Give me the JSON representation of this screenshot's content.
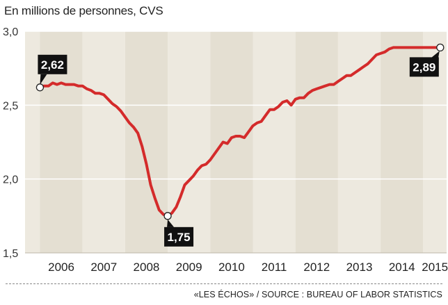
{
  "header": {
    "unit_label": "En millions de personnes, CVS"
  },
  "footer": {
    "source": "«LES ÉCHOS» / SOURCE : BUREAU OF LABOR STATISTICS"
  },
  "colors": {
    "line": "#d42b2b",
    "band_dark": "#e4dfd2",
    "band_light": "#ede9df",
    "callout_bg": "#111111",
    "callout_text": "#ffffff"
  },
  "chart_data": {
    "type": "line",
    "title": "",
    "xlabel": "",
    "ylabel": "",
    "ylim": [
      1.5,
      3.0
    ],
    "grid": true,
    "y_ticks": [
      "1,5",
      "2,0",
      "2,5",
      "3,0"
    ],
    "x_tick_labels": [
      "2006",
      "2007",
      "2008",
      "2009",
      "2010",
      "2011",
      "2012",
      "2013",
      "2014",
      "2015"
    ],
    "series": [
      {
        "x": [
          2006.0,
          2006.1,
          2006.2,
          2006.3,
          2006.4,
          2006.5,
          2006.6,
          2006.7,
          2006.8,
          2006.9,
          2007.0,
          2007.1,
          2007.2,
          2007.3,
          2007.4,
          2007.5,
          2007.6,
          2007.7,
          2007.8,
          2007.9,
          2008.0,
          2008.1,
          2008.2,
          2008.3,
          2008.4,
          2008.5,
          2008.6,
          2008.7,
          2008.8,
          2008.9,
          2009.0,
          2009.1,
          2009.2,
          2009.3,
          2009.4,
          2009.5,
          2009.6,
          2009.7,
          2009.8,
          2009.9,
          2010.0,
          2010.1,
          2010.2,
          2010.3,
          2010.4,
          2010.5,
          2010.6,
          2010.7,
          2010.8,
          2010.9,
          2011.0,
          2011.1,
          2011.2,
          2011.3,
          2011.4,
          2011.5,
          2011.6,
          2011.7,
          2011.8,
          2011.9,
          2012.0,
          2012.1,
          2012.2,
          2012.3,
          2012.4,
          2012.5,
          2012.6,
          2012.7,
          2012.8,
          2012.9,
          2013.0,
          2013.1,
          2013.2,
          2013.3,
          2013.4,
          2013.5,
          2013.6,
          2013.7,
          2013.8,
          2013.9,
          2014.0,
          2014.1,
          2014.2,
          2014.3,
          2014.4,
          2014.5,
          2014.6,
          2014.7,
          2014.8,
          2014.9,
          2015.0,
          2015.1,
          2015.2,
          2015.3,
          2015.4
        ],
        "values": [
          2.62,
          2.63,
          2.63,
          2.65,
          2.64,
          2.65,
          2.64,
          2.64,
          2.64,
          2.63,
          2.63,
          2.61,
          2.6,
          2.58,
          2.58,
          2.57,
          2.54,
          2.51,
          2.49,
          2.46,
          2.42,
          2.38,
          2.35,
          2.31,
          2.22,
          2.1,
          1.96,
          1.87,
          1.79,
          1.76,
          1.75,
          1.77,
          1.81,
          1.88,
          1.96,
          1.99,
          2.02,
          2.06,
          2.09,
          2.1,
          2.13,
          2.17,
          2.21,
          2.25,
          2.24,
          2.28,
          2.29,
          2.29,
          2.28,
          2.32,
          2.36,
          2.38,
          2.39,
          2.43,
          2.47,
          2.47,
          2.49,
          2.52,
          2.53,
          2.5,
          2.54,
          2.55,
          2.55,
          2.58,
          2.6,
          2.61,
          2.62,
          2.63,
          2.64,
          2.64,
          2.66,
          2.68,
          2.7,
          2.7,
          2.72,
          2.74,
          2.76,
          2.78,
          2.81,
          2.84,
          2.85,
          2.86,
          2.88,
          2.89,
          2.89,
          2.89,
          2.89,
          2.89,
          2.89,
          2.89,
          2.89,
          2.89,
          2.89,
          2.89,
          2.89
        ]
      }
    ],
    "annotations": [
      {
        "label": "2,62",
        "x": 2006.0,
        "value": 2.62,
        "placement": "above-right"
      },
      {
        "label": "1,75",
        "x": 2009.0,
        "value": 1.75,
        "placement": "below"
      },
      {
        "label": "2,89",
        "x": 2015.4,
        "value": 2.89,
        "placement": "below-left"
      }
    ]
  }
}
